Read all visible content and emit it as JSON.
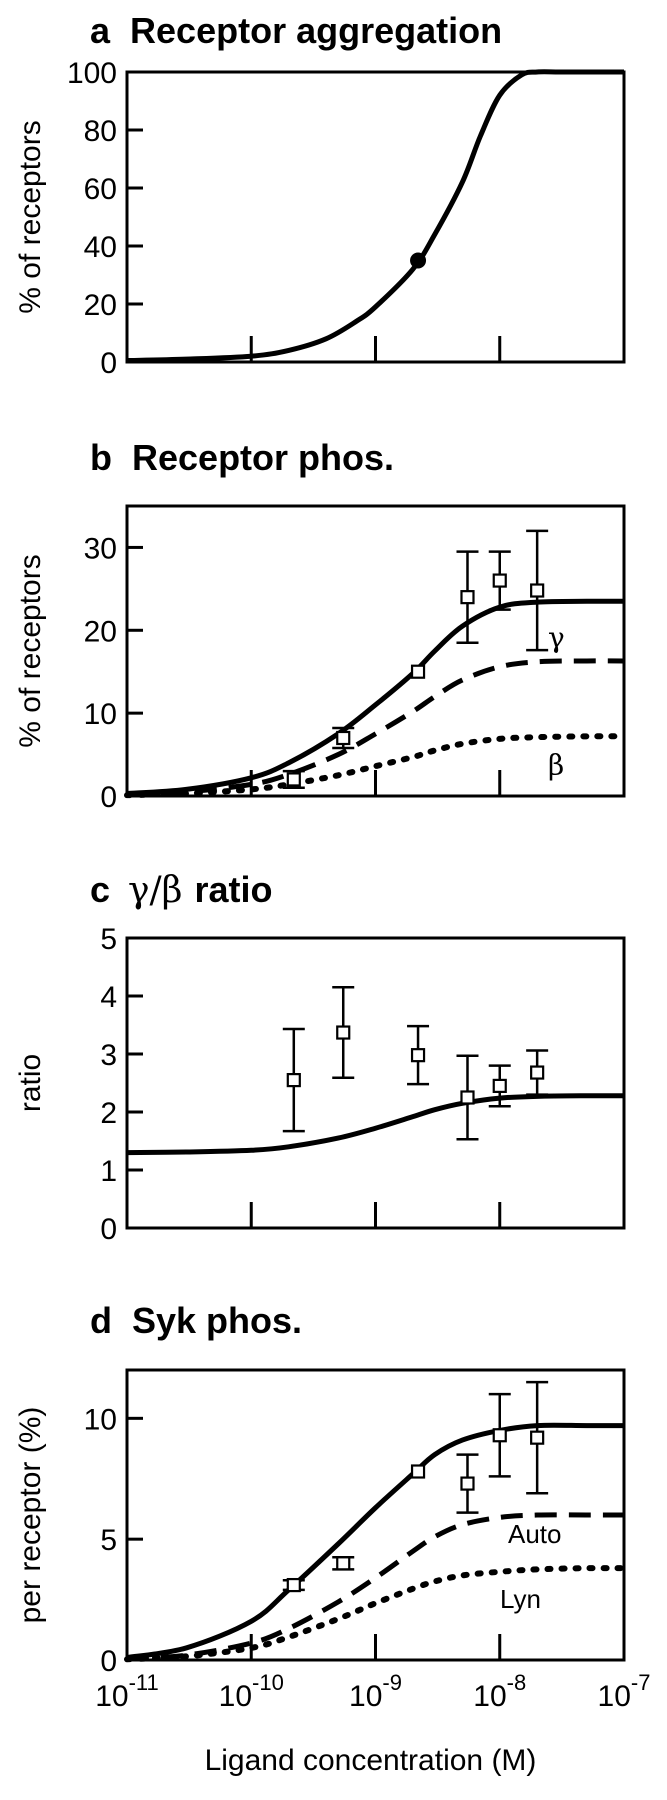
{
  "x_axis": {
    "label": "Ligand concentration (M)",
    "tick_base": "10",
    "tick_exponents": [
      "-11",
      "-10",
      "-9",
      "-8",
      "-7"
    ],
    "scale": "log",
    "range": [
      1e-11,
      1e-07
    ]
  },
  "chart_data": [
    {
      "type": "line",
      "panel_letter": "a",
      "title": "Receptor aggregation",
      "ylabel": "% of receptors",
      "ylim": [
        0,
        100
      ],
      "yticks": [
        "0",
        "20",
        "40",
        "60",
        "80",
        "100"
      ],
      "grid": false,
      "series": [
        {
          "style": "solid",
          "x": [
            1e-11,
            3e-11,
            1e-10,
            2e-10,
            4e-10,
            7e-10,
            1e-09,
            2e-09,
            3e-09,
            5e-09,
            7e-09,
            1e-08,
            1.5e-08,
            2e-08,
            3e-08,
            5e-08,
            1e-07
          ],
          "y": [
            0.5,
            1,
            2,
            4,
            8,
            14,
            19,
            32,
            44,
            62,
            78,
            92,
            99,
            100,
            100,
            100,
            100
          ]
        }
      ],
      "points": [
        {
          "x": 2.2e-09,
          "y": 35,
          "marker": "filled-circle"
        }
      ]
    },
    {
      "type": "line",
      "panel_letter": "b",
      "title": "Receptor phos.",
      "ylabel": "% of receptors",
      "ylim": [
        0,
        35
      ],
      "yticks": [
        "0",
        "10",
        "20",
        "30"
      ],
      "grid": false,
      "series": [
        {
          "style": "solid",
          "x": [
            1e-11,
            3e-11,
            1e-10,
            2e-10,
            5e-10,
            1e-09,
            2e-09,
            3e-09,
            5e-09,
            1e-08,
            2e-08,
            5e-08,
            1e-07
          ],
          "y": [
            0.3,
            0.8,
            2.2,
            4,
            7.5,
            11,
            14.8,
            17.5,
            20.5,
            22.8,
            23.4,
            23.5,
            23.5
          ]
        },
        {
          "name": "γ",
          "style": "dashed",
          "x": [
            1e-11,
            3e-11,
            1e-10,
            2e-10,
            5e-10,
            1e-09,
            2e-09,
            3e-09,
            5e-09,
            1e-08,
            2e-08,
            5e-08,
            1e-07
          ],
          "y": [
            0.2,
            0.5,
            1.4,
            2.6,
            5,
            7.5,
            10.2,
            12,
            14,
            15.6,
            16.2,
            16.3,
            16.3
          ]
        },
        {
          "name": "β",
          "style": "dotted",
          "x": [
            1e-11,
            3e-11,
            1e-10,
            2e-10,
            5e-10,
            1e-09,
            2e-09,
            3e-09,
            5e-09,
            1e-08,
            2e-08,
            5e-08,
            1e-07
          ],
          "y": [
            0.1,
            0.3,
            0.8,
            1.4,
            2.5,
            3.6,
            4.7,
            5.5,
            6.3,
            6.9,
            7.1,
            7.2,
            7.2
          ]
        }
      ],
      "points": [
        {
          "x": 2.2e-10,
          "y": 2,
          "err": 1,
          "marker": "open-square"
        },
        {
          "x": 5.5e-10,
          "y": 7,
          "err": 1.2,
          "marker": "open-square"
        },
        {
          "x": 2.2e-09,
          "y": 15,
          "err": 0,
          "marker": "open-square"
        },
        {
          "x": 5.5e-09,
          "y": 24,
          "err": 5.5,
          "marker": "open-square"
        },
        {
          "x": 1e-08,
          "y": 26,
          "err": 3.5,
          "marker": "open-square"
        },
        {
          "x": 2e-08,
          "y": 24.8,
          "err": 7.2,
          "marker": "open-square"
        }
      ]
    },
    {
      "type": "line",
      "panel_letter": "c",
      "title_greek": "γ/β",
      "title": "ratio",
      "ylabel": "ratio",
      "ylim": [
        0,
        5
      ],
      "yticks": [
        "0",
        "1",
        "2",
        "3",
        "4",
        "5"
      ],
      "grid": false,
      "series": [
        {
          "style": "solid",
          "x": [
            1e-11,
            3e-11,
            1e-10,
            2e-10,
            5e-10,
            1e-09,
            2e-09,
            3e-09,
            5e-09,
            1e-08,
            2e-08,
            5e-08,
            1e-07
          ],
          "y": [
            1.3,
            1.31,
            1.34,
            1.4,
            1.55,
            1.72,
            1.92,
            2.04,
            2.15,
            2.24,
            2.27,
            2.28,
            2.28
          ]
        }
      ],
      "points": [
        {
          "x": 2.2e-10,
          "y": 2.55,
          "err": 0.88,
          "marker": "open-square"
        },
        {
          "x": 5.5e-10,
          "y": 3.37,
          "err": 0.78,
          "marker": "open-square"
        },
        {
          "x": 2.2e-09,
          "y": 2.98,
          "err": 0.5,
          "marker": "open-square"
        },
        {
          "x": 5.5e-09,
          "y": 2.25,
          "err": 0.72,
          "marker": "open-square"
        },
        {
          "x": 1e-08,
          "y": 2.45,
          "err": 0.35,
          "marker": "open-square"
        },
        {
          "x": 2e-08,
          "y": 2.68,
          "err": 0.38,
          "marker": "open-square"
        }
      ]
    },
    {
      "type": "line",
      "panel_letter": "d",
      "title": "Syk phos.",
      "ylabel": "per receptor (%)",
      "ylim": [
        0,
        12
      ],
      "yticks": [
        "0",
        "5",
        "10"
      ],
      "grid": false,
      "series": [
        {
          "style": "solid",
          "x": [
            1e-11,
            3e-11,
            1e-10,
            2e-10,
            5e-10,
            1e-09,
            2e-09,
            3e-09,
            5e-09,
            1e-08,
            2e-08,
            5e-08,
            1e-07
          ],
          "y": [
            0.1,
            0.5,
            1.6,
            2.9,
            4.8,
            6.3,
            7.7,
            8.5,
            9.1,
            9.5,
            9.7,
            9.7,
            9.7
          ]
        },
        {
          "name": "Auto",
          "style": "dashed",
          "x": [
            1e-11,
            3e-11,
            1e-10,
            2e-10,
            5e-10,
            1e-09,
            2e-09,
            3e-09,
            5e-09,
            1e-08,
            2e-08,
            5e-08,
            1e-07
          ],
          "y": [
            0.05,
            0.2,
            0.7,
            1.3,
            2.4,
            3.4,
            4.5,
            5.1,
            5.6,
            5.9,
            6,
            6,
            6
          ]
        },
        {
          "name": "Lyn",
          "style": "dotted",
          "x": [
            1e-11,
            3e-11,
            1e-10,
            2e-10,
            5e-10,
            1e-09,
            2e-09,
            3e-09,
            5e-09,
            1e-08,
            2e-08,
            5e-08,
            1e-07
          ],
          "y": [
            0.03,
            0.15,
            0.5,
            0.95,
            1.7,
            2.35,
            2.95,
            3.25,
            3.5,
            3.65,
            3.75,
            3.8,
            3.8
          ]
        }
      ],
      "points": [
        {
          "x": 2.2e-10,
          "y": 3.1,
          "err": 0.2,
          "marker": "open-square"
        },
        {
          "x": 5.5e-10,
          "y": 4,
          "err": 0.25,
          "marker": "open-square"
        },
        {
          "x": 2.2e-09,
          "y": 7.8,
          "err": 0,
          "marker": "open-square"
        },
        {
          "x": 5.5e-09,
          "y": 7.3,
          "err": 1.2,
          "marker": "open-square"
        },
        {
          "x": 1e-08,
          "y": 9.3,
          "err": 1.7,
          "marker": "open-square"
        },
        {
          "x": 2e-08,
          "y": 9.2,
          "err": 2.3,
          "marker": "open-square"
        }
      ]
    }
  ]
}
